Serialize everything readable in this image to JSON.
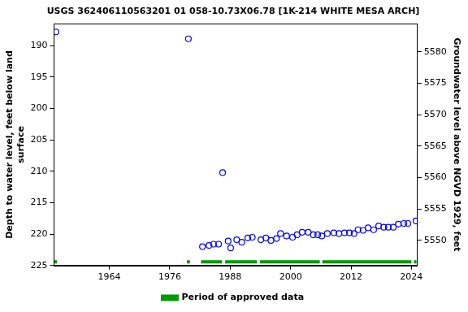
{
  "chart_data": {
    "type": "scatter",
    "title": "USGS 362406110563201 01 058-10.73X06.78 [1K-214 WHITE MESA ARCH]",
    "ylabel": [
      "Depth to water level, feet below land",
      "surface"
    ],
    "y2label": "Groundwater level above NGVD 1929, feet",
    "xlim": [
      1953.0,
      2025.2
    ],
    "xticks": [
      1964,
      1976,
      1988,
      2000,
      2012,
      2024
    ],
    "ylim": [
      225,
      186.5
    ],
    "yticks": [
      190,
      195,
      200,
      205,
      210,
      215,
      220,
      225
    ],
    "y2lim": [
      5546,
      5584.5
    ],
    "y2ticks": [
      5550,
      5555,
      5560,
      5565,
      5570,
      5575,
      5580
    ],
    "grid": false,
    "legend": "bottom",
    "series": [
      {
        "color": "#0000ff",
        "marker": "circle",
        "line_style": "none",
        "x": [
          1953.4,
          1979.7,
          1982.5,
          1983.8,
          1984.7,
          1985.7,
          1986.5,
          1987.6,
          1988.1,
          1989.3,
          1990.3,
          1991.5,
          1992.4,
          1994.1,
          1995.1,
          1996.1,
          1997.2,
          1998.0,
          1999.2,
          2000.4,
          2001.3,
          2002.3,
          2003.5,
          2004.5,
          2005.4,
          2006.2,
          2007.3,
          2008.6,
          2009.6,
          2010.7,
          2011.7,
          2012.6,
          2013.4,
          2014.4,
          2015.4,
          2016.5,
          2017.5,
          2018.5,
          2019.4,
          2020.4,
          2021.4,
          2022.5,
          2023.3,
          2024.9
        ],
        "values": [
          187.8,
          188.9,
          222.0,
          221.8,
          221.6,
          221.6,
          210.2,
          221.1,
          222.2,
          220.9,
          221.3,
          220.6,
          220.5,
          220.9,
          220.6,
          221.0,
          220.7,
          219.9,
          220.3,
          220.5,
          220.1,
          219.7,
          219.7,
          220.1,
          220.1,
          220.3,
          219.9,
          219.8,
          219.9,
          219.8,
          219.8,
          219.9,
          219.3,
          219.4,
          219.0,
          219.3,
          218.7,
          218.9,
          218.9,
          218.9,
          218.4,
          218.3,
          218.3,
          217.9
        ]
      },
      {
        "name": "Period of approved data",
        "color": "#009900",
        "marker": "none",
        "line_style": "solid",
        "x": [
          1953.1,
          1953.6,
          1966.0,
          1979.4,
          1980.0,
          1981.0,
          1982.2,
          1986.4,
          1986.7,
          1987.0,
          1993.3,
          1993.6,
          1993.9,
          2005.8,
          2006.0,
          2006.3,
          2024.0,
          2024.2,
          2024.5,
          2025.0
        ],
        "values": [
          224.4,
          224.4,
          null,
          224.4,
          224.4,
          null,
          224.4,
          224.4,
          null,
          224.4,
          224.4,
          null,
          224.4,
          224.4,
          null,
          224.4,
          224.4,
          null,
          224.4,
          224.4
        ]
      }
    ]
  }
}
